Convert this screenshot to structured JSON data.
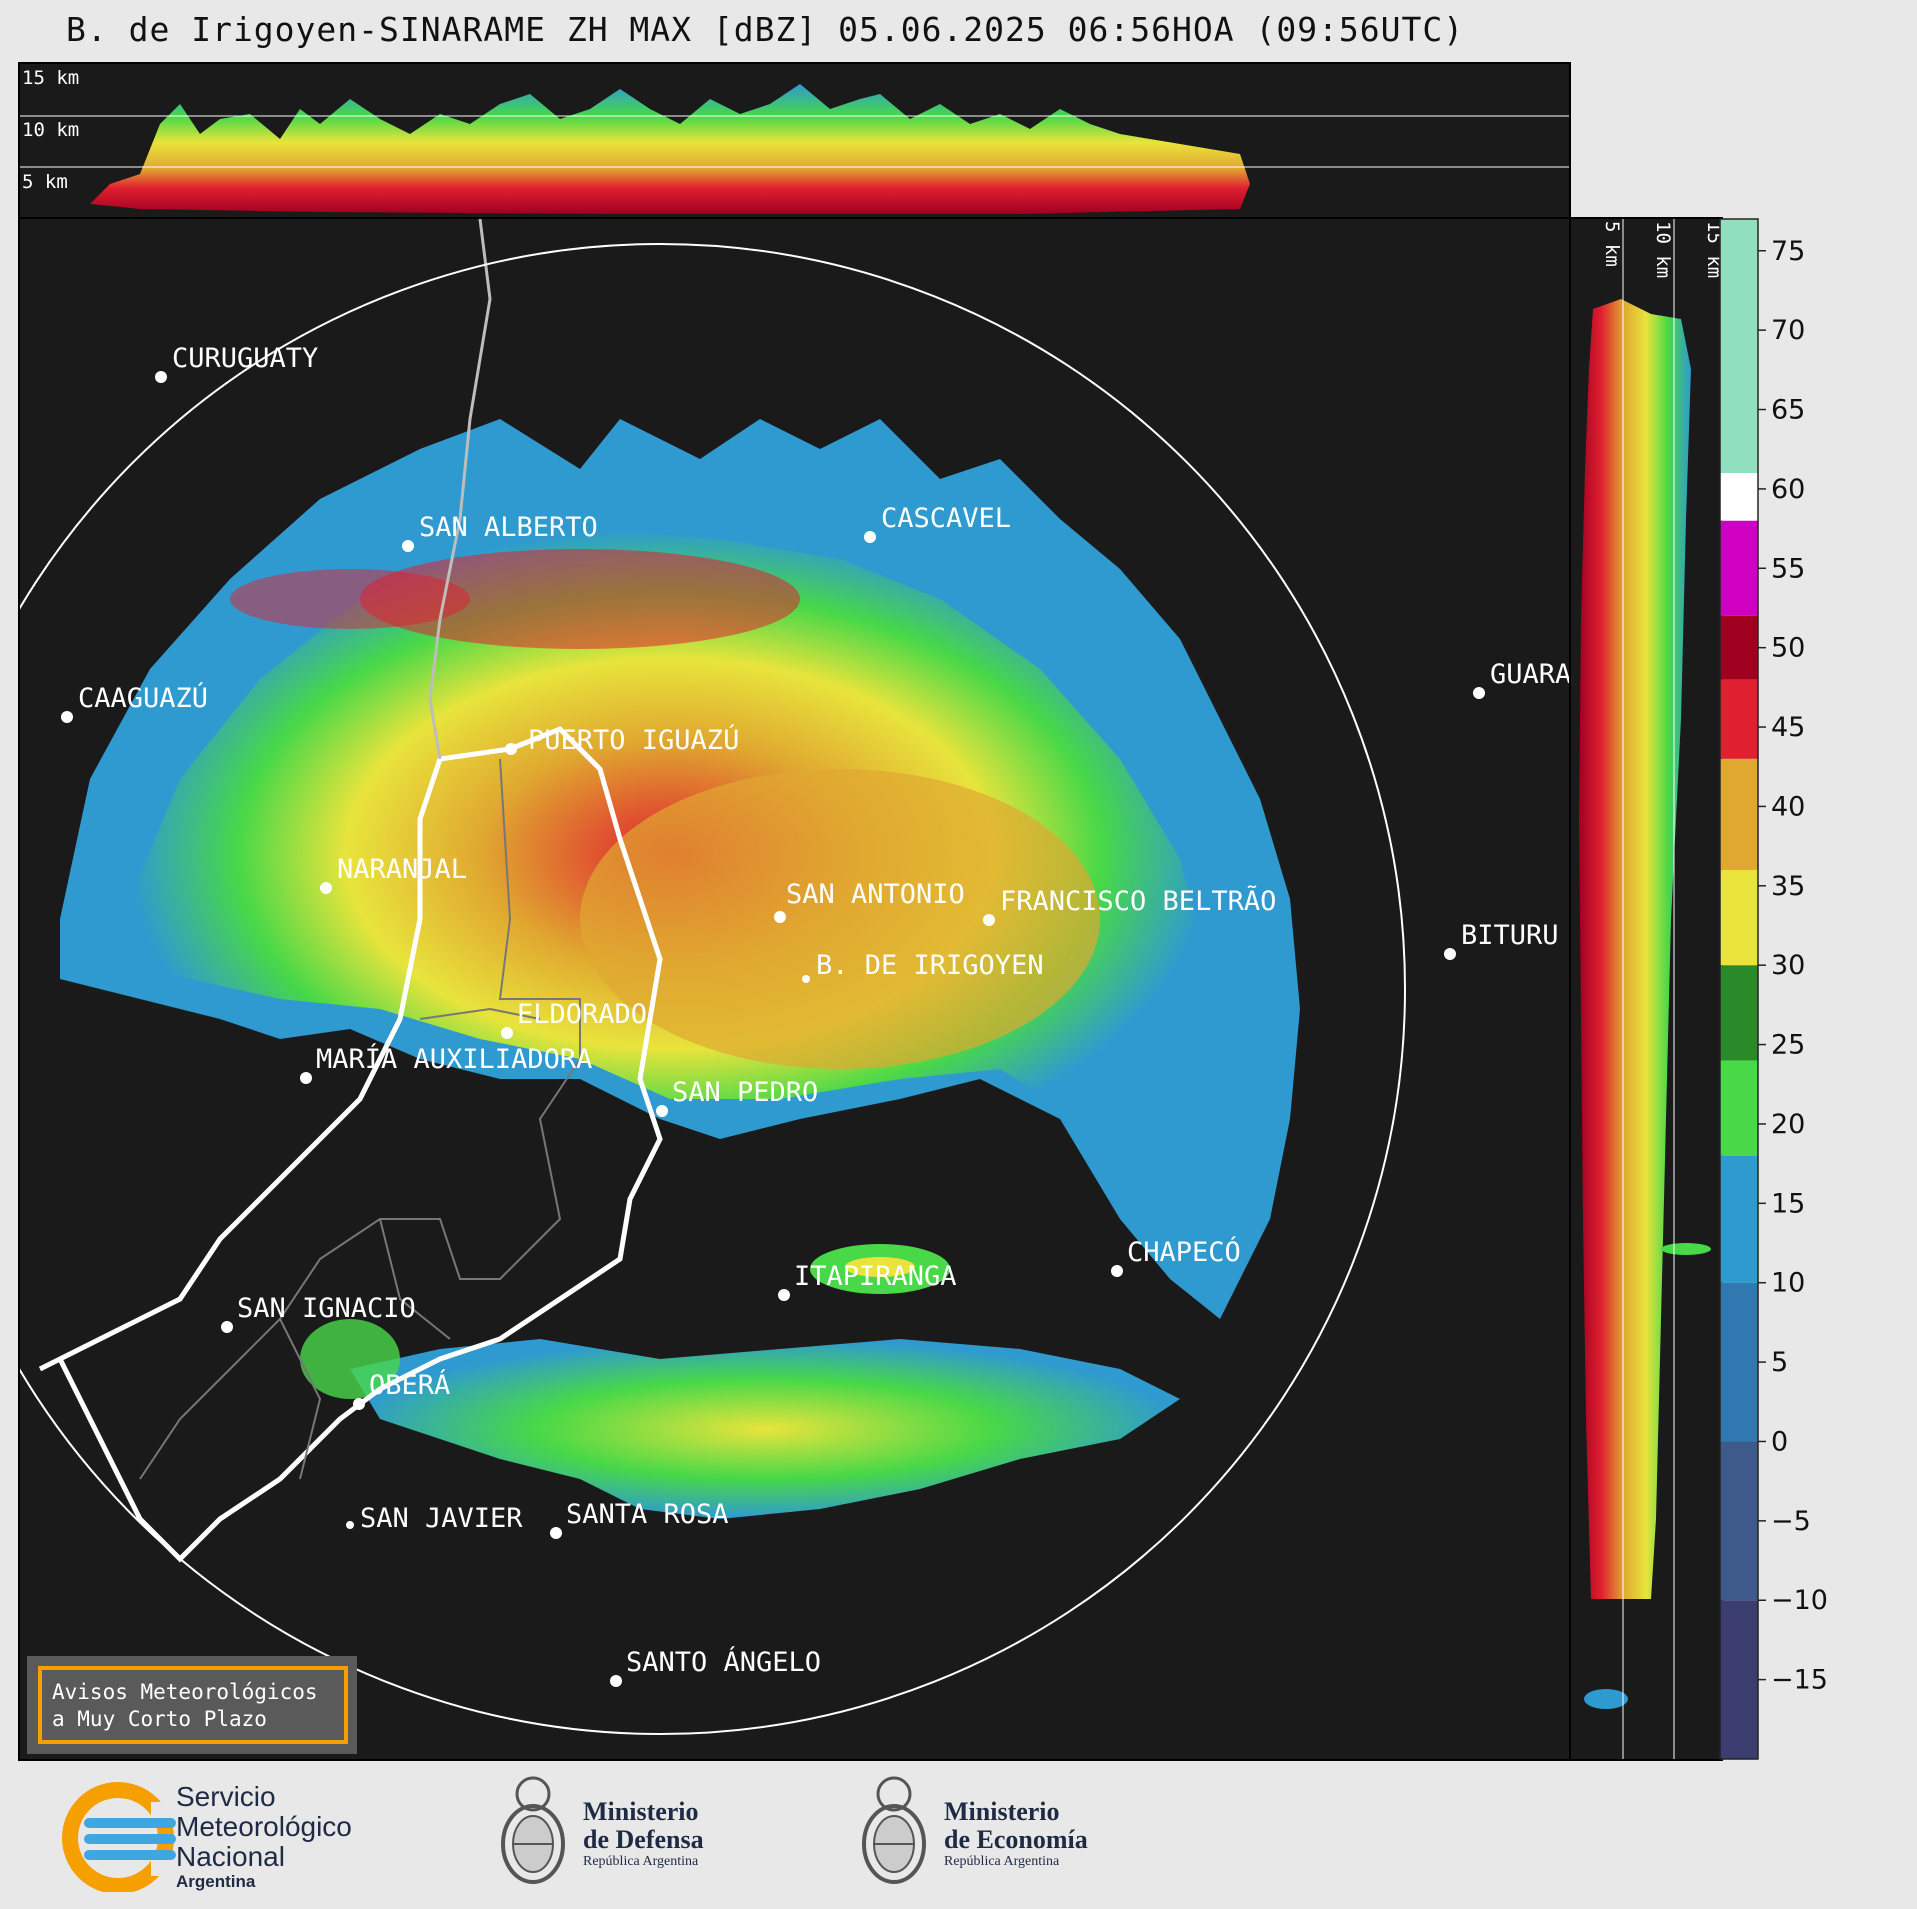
{
  "title": "B. de Irigoyen-SINARAME ZH MAX [dBZ] 05.06.2025 06:56HOA (09:56UTC)",
  "top_profile": {
    "labels": [
      "15 km",
      "10 km",
      "5 km"
    ]
  },
  "side_profile": {
    "labels": [
      "5 km",
      "10 km",
      "15 km"
    ]
  },
  "colorbar": {
    "ticks": [
      75,
      70,
      65,
      60,
      55,
      50,
      45,
      40,
      35,
      30,
      25,
      20,
      15,
      10,
      5,
      0,
      -5,
      -10,
      -15
    ],
    "tick_labels": [
      "75",
      "70",
      "65",
      "60",
      "55",
      "50",
      "45",
      "40",
      "35",
      "30",
      "25",
      "20",
      "15",
      "10",
      "5",
      "0",
      "−5",
      "−10",
      "−15"
    ],
    "range": [
      -20,
      77
    ],
    "stops": [
      {
        "from": -20,
        "to": -10,
        "color": "#3a3d6e"
      },
      {
        "from": -10,
        "to": 0,
        "color": "#3d5a8a"
      },
      {
        "from": 0,
        "to": 10,
        "color": "#2f78b0"
      },
      {
        "from": 10,
        "to": 18,
        "color": "#2f9ad0"
      },
      {
        "from": 18,
        "to": 24,
        "color": "#48d848"
      },
      {
        "from": 24,
        "to": 30,
        "color": "#2a8a2a"
      },
      {
        "from": 30,
        "to": 36,
        "color": "#e8e43c"
      },
      {
        "from": 36,
        "to": 43,
        "color": "#e0a830"
      },
      {
        "from": 43,
        "to": 48,
        "color": "#e02030"
      },
      {
        "from": 48,
        "to": 52,
        "color": "#a00020"
      },
      {
        "from": 52,
        "to": 58,
        "color": "#d000c0"
      },
      {
        "from": 58,
        "to": 61,
        "color": "#ffffff"
      },
      {
        "from": 61,
        "to": 77,
        "color": "#90e0c0"
      }
    ]
  },
  "places": [
    {
      "name": "CURUGUATY"
    },
    {
      "name": "SAN ALBERTO"
    },
    {
      "name": "CASCAVEL"
    },
    {
      "name": "CAAGUAZÚ"
    },
    {
      "name": "GUARA"
    },
    {
      "name": "PUERTO IGUAZÚ"
    },
    {
      "name": "NARANJAL"
    },
    {
      "name": "SAN ANTONIO"
    },
    {
      "name": "FRANCISCO BELTRÃO"
    },
    {
      "name": "BITURU"
    },
    {
      "name": "B. DE IRIGOYEN"
    },
    {
      "name": "ELDORADO"
    },
    {
      "name": "MARÍA AUXILIADORA"
    },
    {
      "name": "SAN PEDRO"
    },
    {
      "name": "CHAPECÓ"
    },
    {
      "name": "ITAPIRANGA"
    },
    {
      "name": "SAN IGNACIO"
    },
    {
      "name": "OBERÁ"
    },
    {
      "name": "SAN JAVIER"
    },
    {
      "name": "SANTA ROSA"
    },
    {
      "name": "SANTO ÁNGELO"
    }
  ],
  "warning_box": {
    "line1": "Avisos Meteorológicos",
    "line2": "a Muy Corto Plazo"
  },
  "footer": {
    "smn": {
      "line1": "Servicio",
      "line2": "Meteorológico",
      "line3": "Nacional",
      "line4": "Argentina"
    },
    "defensa": {
      "line1": "Ministerio",
      "line2": "de Defensa",
      "line3": "República Argentina"
    },
    "economia": {
      "line1": "Ministerio",
      "line2": "de Economía",
      "line3": "República Argentina"
    }
  },
  "colors": {
    "background": "#1a1a1a",
    "page": "#e8e8e8",
    "accent_orange": "#f5a000",
    "smn_blue": "#3fa6e0"
  }
}
